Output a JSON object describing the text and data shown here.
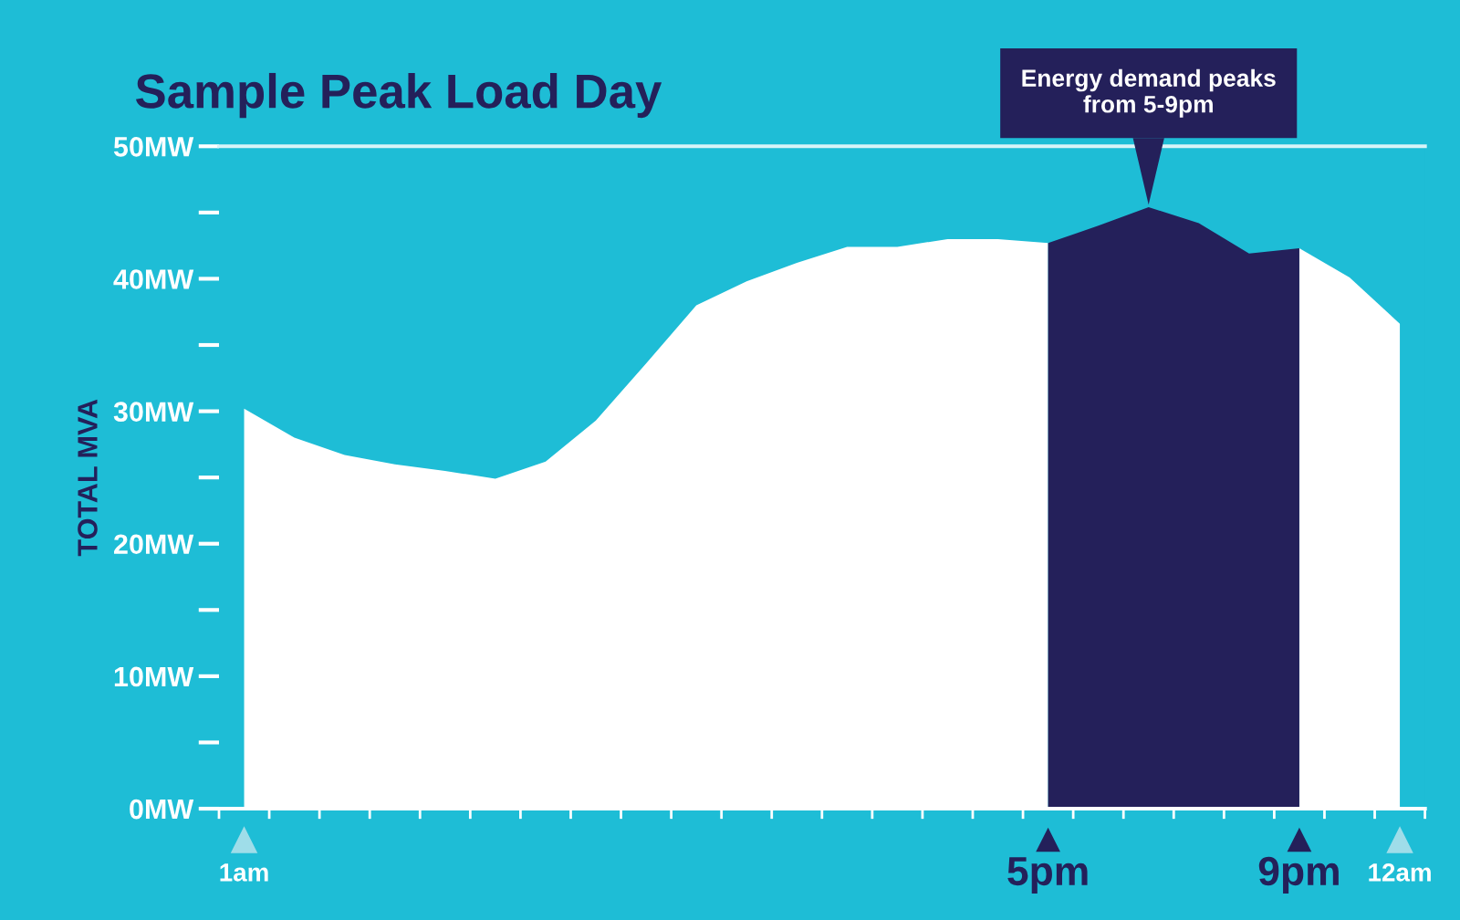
{
  "chart_data": {
    "type": "area",
    "title": "Sample Peak Load Day",
    "ylabel": "TOTAL MVA",
    "categories": [
      "1am",
      null,
      null,
      null,
      null,
      null,
      null,
      null,
      null,
      null,
      null,
      null,
      null,
      null,
      null,
      null,
      "5pm",
      null,
      null,
      null,
      null,
      "9pm",
      null,
      "12am"
    ],
    "series": [
      {
        "color": "#ffffff",
        "values": [
          30.2,
          28,
          26.7,
          26,
          25.5,
          24.9,
          26.2,
          29.3,
          33.6,
          38,
          39.8,
          41.2,
          42.4,
          42.4,
          43,
          43,
          42.7,
          null,
          null,
          null,
          null,
          42.3,
          40.1,
          36.6
        ]
      },
      {
        "color": "#24205a",
        "values": [
          null,
          null,
          null,
          null,
          null,
          null,
          null,
          null,
          null,
          null,
          null,
          null,
          null,
          null,
          null,
          null,
          42.7,
          44,
          45.4,
          44.2,
          41.9,
          42.3,
          null,
          null
        ]
      }
    ],
    "ylim": [
      0,
      50
    ],
    "yticks": [
      {
        "value": 0,
        "label": "0MW"
      },
      {
        "value": 5,
        "label": null
      },
      {
        "value": 10,
        "label": "10MW"
      },
      {
        "value": 15,
        "label": null
      },
      {
        "value": 20,
        "label": "20MW"
      },
      {
        "value": 25,
        "label": null
      },
      {
        "value": 30,
        "label": "30MW"
      },
      {
        "value": 35,
        "label": null
      },
      {
        "value": 40,
        "label": "40MW"
      },
      {
        "value": 45,
        "label": null
      },
      {
        "value": 50,
        "label": "50MW"
      }
    ],
    "annotations": [
      {
        "text": "Energy demand peaks\nfrom 5-9pm",
        "y": 45.4
      }
    ],
    "grid": false,
    "legend": false
  }
}
